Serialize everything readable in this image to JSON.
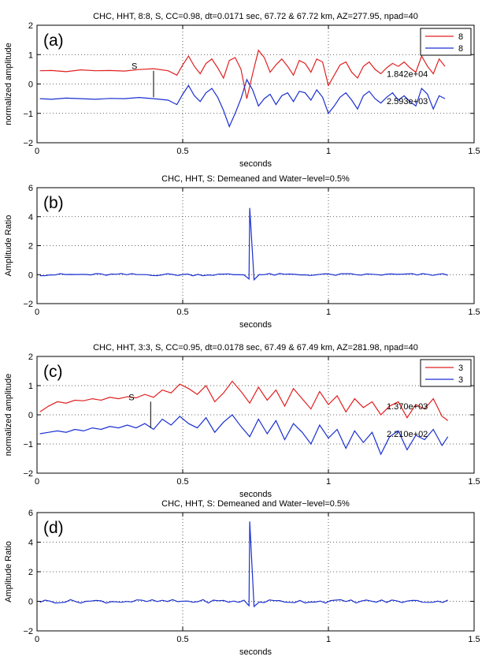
{
  "colors": {
    "red": "#e02020",
    "blue": "#1a2fd0",
    "grid": "#333333",
    "axis": "#000000"
  },
  "chart_data": [
    {
      "type": "line",
      "panel_label": "(a)",
      "title": "CHC, HHT, 8:8, S, CC=0.98,  dt=0.0171 sec,  67.72 & 67.72 km, AZ=277.95, npad=40",
      "xlabel": "seconds",
      "ylabel": "normalized amplitude",
      "xlim": [
        0,
        1.5
      ],
      "ylim": [
        -2,
        2
      ],
      "xticks": [
        "0",
        "0.5",
        "1",
        "1.5"
      ],
      "yticks": [
        "−2",
        "−1",
        "0",
        "1",
        "2"
      ],
      "grid": true,
      "legend": {
        "position": "top-right",
        "entries": [
          "8",
          "8"
        ]
      },
      "phase_marker": {
        "label": "S",
        "x": 0.4,
        "y_top": 0.45,
        "y_bottom": -0.45
      },
      "annotations": [
        {
          "text": "1.842e+04",
          "x": 1.2,
          "y": 0.35
        },
        {
          "text": "2.593e+03",
          "x": 1.2,
          "y": -0.58
        }
      ],
      "series": [
        {
          "color": "red",
          "x": [
            0.01,
            0.05,
            0.1,
            0.15,
            0.2,
            0.25,
            0.3,
            0.35,
            0.4,
            0.45,
            0.48,
            0.5,
            0.52,
            0.54,
            0.56,
            0.58,
            0.6,
            0.62,
            0.64,
            0.66,
            0.68,
            0.7,
            0.72,
            0.74,
            0.76,
            0.78,
            0.8,
            0.82,
            0.84,
            0.86,
            0.88,
            0.9,
            0.92,
            0.94,
            0.96,
            0.98,
            1.0,
            1.02,
            1.04,
            1.06,
            1.08,
            1.1,
            1.12,
            1.14,
            1.16,
            1.18,
            1.2,
            1.22,
            1.24,
            1.26,
            1.28,
            1.3,
            1.32,
            1.34,
            1.36,
            1.38,
            1.4
          ],
          "y": [
            0.45,
            0.46,
            0.42,
            0.48,
            0.45,
            0.46,
            0.44,
            0.49,
            0.52,
            0.45,
            0.3,
            0.65,
            0.95,
            0.6,
            0.35,
            0.7,
            0.85,
            0.55,
            0.2,
            0.8,
            0.9,
            0.5,
            -0.5,
            0.35,
            1.15,
            0.9,
            0.4,
            0.65,
            0.85,
            0.6,
            0.3,
            0.8,
            0.7,
            0.4,
            0.85,
            0.75,
            -0.05,
            0.3,
            0.65,
            0.75,
            0.4,
            0.2,
            0.6,
            0.75,
            0.5,
            0.35,
            0.55,
            0.7,
            0.6,
            0.75,
            0.55,
            0.4,
            0.95,
            0.6,
            0.35,
            0.85,
            0.6
          ]
        },
        {
          "color": "blue",
          "x": [
            0.01,
            0.05,
            0.1,
            0.15,
            0.2,
            0.25,
            0.3,
            0.35,
            0.4,
            0.45,
            0.48,
            0.5,
            0.52,
            0.54,
            0.56,
            0.58,
            0.6,
            0.62,
            0.64,
            0.66,
            0.68,
            0.7,
            0.72,
            0.74,
            0.76,
            0.78,
            0.8,
            0.82,
            0.84,
            0.86,
            0.88,
            0.9,
            0.92,
            0.94,
            0.96,
            0.98,
            1.0,
            1.02,
            1.04,
            1.06,
            1.08,
            1.1,
            1.12,
            1.14,
            1.16,
            1.18,
            1.2,
            1.22,
            1.24,
            1.26,
            1.28,
            1.3,
            1.32,
            1.34,
            1.36,
            1.38,
            1.4
          ],
          "y": [
            -0.5,
            -0.52,
            -0.48,
            -0.5,
            -0.52,
            -0.49,
            -0.5,
            -0.46,
            -0.5,
            -0.55,
            -0.7,
            -0.35,
            -0.05,
            -0.4,
            -0.6,
            -0.3,
            -0.15,
            -0.45,
            -0.9,
            -1.45,
            -1.0,
            -0.5,
            0.15,
            -0.2,
            -0.75,
            -0.5,
            -0.35,
            -0.7,
            -0.4,
            -0.3,
            -0.6,
            -0.25,
            -0.3,
            -0.55,
            -0.2,
            -0.45,
            -1.0,
            -0.75,
            -0.45,
            -0.3,
            -0.55,
            -0.85,
            -0.4,
            -0.25,
            -0.5,
            -0.65,
            -0.45,
            -0.3,
            -0.55,
            -0.4,
            -0.6,
            -0.75,
            -0.15,
            -0.35,
            -0.85,
            -0.4,
            -0.5
          ]
        }
      ]
    },
    {
      "type": "line",
      "panel_label": "(b)",
      "title": "CHC, HHT, S: Demeaned and Water−level=0.5%",
      "xlabel": "seconds",
      "ylabel": "Amplitude Ratio",
      "xlim": [
        0,
        1.5
      ],
      "ylim": [
        -2,
        6
      ],
      "xticks": [
        "0",
        "0.5",
        "1",
        "1.5"
      ],
      "yticks": [
        "−2",
        "0",
        "2",
        "4",
        "6"
      ],
      "grid": true,
      "series": [
        {
          "color": "blue",
          "spike": {
            "x": 0.73,
            "y": 4.6,
            "base_noise": 0.08,
            "x_start": 0.01,
            "x_end": 1.41
          }
        }
      ]
    },
    {
      "type": "line",
      "panel_label": "(c)",
      "title": "CHC, HHT, 3:3, S, CC=0.95,  dt=0.0178 sec,  67.49 & 67.49 km, AZ=281.98, npad=40",
      "xlabel": "seconds",
      "ylabel": "normalized amplitude",
      "xlim": [
        0,
        1.5
      ],
      "ylim": [
        -2,
        2
      ],
      "xticks": [
        "0",
        "0.5",
        "1",
        "1.5"
      ],
      "yticks": [
        "−2",
        "−1",
        "0",
        "1",
        "2"
      ],
      "grid": true,
      "legend": {
        "position": "top-right",
        "entries": [
          "3",
          "3"
        ]
      },
      "phase_marker": {
        "label": "S",
        "x": 0.39,
        "y_top": 0.45,
        "y_bottom": -0.45
      },
      "annotations": [
        {
          "text": "1.370e+03",
          "x": 1.2,
          "y": 0.3
        },
        {
          "text": "2.210e+02",
          "x": 1.2,
          "y": -0.65
        }
      ],
      "series": [
        {
          "color": "red",
          "x": [
            0.01,
            0.04,
            0.07,
            0.1,
            0.13,
            0.16,
            0.19,
            0.22,
            0.25,
            0.28,
            0.31,
            0.34,
            0.37,
            0.4,
            0.43,
            0.46,
            0.49,
            0.52,
            0.55,
            0.58,
            0.61,
            0.64,
            0.67,
            0.7,
            0.73,
            0.76,
            0.79,
            0.82,
            0.85,
            0.88,
            0.91,
            0.94,
            0.97,
            1.0,
            1.03,
            1.06,
            1.09,
            1.12,
            1.15,
            1.18,
            1.21,
            1.24,
            1.27,
            1.3,
            1.33,
            1.36,
            1.39,
            1.41
          ],
          "y": [
            0.1,
            0.3,
            0.45,
            0.4,
            0.5,
            0.48,
            0.55,
            0.5,
            0.6,
            0.55,
            0.62,
            0.58,
            0.7,
            0.6,
            0.85,
            0.75,
            1.05,
            0.9,
            0.7,
            1.0,
            0.45,
            0.75,
            1.15,
            0.8,
            0.4,
            0.95,
            0.5,
            0.85,
            0.3,
            0.9,
            0.55,
            0.2,
            0.8,
            0.35,
            0.65,
            0.1,
            0.55,
            0.25,
            0.45,
            0.0,
            0.3,
            0.45,
            -0.1,
            0.35,
            0.2,
            0.55,
            -0.05,
            -0.2
          ]
        },
        {
          "color": "blue",
          "x": [
            0.01,
            0.04,
            0.07,
            0.1,
            0.13,
            0.16,
            0.19,
            0.22,
            0.25,
            0.28,
            0.31,
            0.34,
            0.37,
            0.4,
            0.43,
            0.46,
            0.49,
            0.52,
            0.55,
            0.58,
            0.61,
            0.64,
            0.67,
            0.7,
            0.73,
            0.76,
            0.79,
            0.82,
            0.85,
            0.88,
            0.91,
            0.94,
            0.97,
            1.0,
            1.03,
            1.06,
            1.09,
            1.12,
            1.15,
            1.18,
            1.21,
            1.24,
            1.27,
            1.3,
            1.33,
            1.36,
            1.39,
            1.41
          ],
          "y": [
            -0.65,
            -0.6,
            -0.55,
            -0.6,
            -0.5,
            -0.55,
            -0.45,
            -0.5,
            -0.4,
            -0.45,
            -0.35,
            -0.45,
            -0.3,
            -0.5,
            -0.15,
            -0.35,
            -0.05,
            -0.3,
            -0.45,
            -0.1,
            -0.6,
            -0.25,
            0.0,
            -0.4,
            -0.75,
            -0.15,
            -0.65,
            -0.2,
            -0.85,
            -0.3,
            -0.6,
            -1.0,
            -0.35,
            -0.8,
            -0.5,
            -1.15,
            -0.55,
            -0.95,
            -0.6,
            -1.35,
            -0.75,
            -0.55,
            -1.2,
            -0.7,
            -0.85,
            -0.5,
            -1.05,
            -0.75
          ]
        }
      ]
    },
    {
      "type": "line",
      "panel_label": "(d)",
      "title": "CHC, HHT, S: Demeaned and Water−level=0.5%",
      "xlabel": "seconds",
      "ylabel": "Amplitude Ratio",
      "xlim": [
        0,
        1.5
      ],
      "ylim": [
        -2,
        6
      ],
      "xticks": [
        "0",
        "0.5",
        "1",
        "1.5"
      ],
      "yticks": [
        "−2",
        "0",
        "2",
        "4",
        "6"
      ],
      "grid": true,
      "series": [
        {
          "color": "blue",
          "spike": {
            "x": 0.73,
            "y": 5.4,
            "base_noise": 0.12,
            "x_start": 0.01,
            "x_end": 1.41
          }
        }
      ]
    }
  ]
}
